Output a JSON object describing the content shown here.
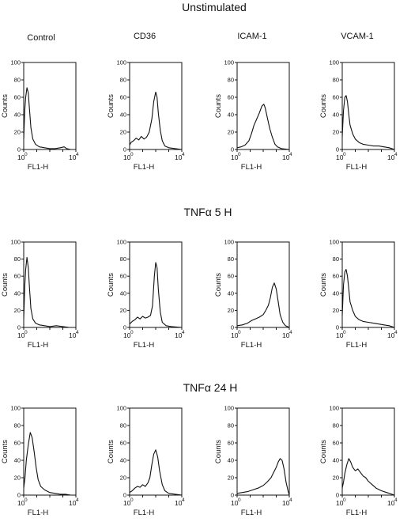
{
  "columns": [
    "Control",
    "CD36",
    "ICAM-1",
    "VCAM-1"
  ],
  "chart_data": [
    {
      "type": "line",
      "title": "Unstimulated",
      "ylabel": "Counts",
      "xlabel": "FL1-H",
      "x_scale": "log",
      "x_ticks": [
        "10",
        "0",
        "10",
        "4"
      ],
      "y_ticks": [
        "0",
        "20",
        "40",
        "60",
        "80",
        "100"
      ],
      "ylim": [
        0,
        100
      ],
      "xlim_log10": [
        0,
        4
      ],
      "panels": [
        {
          "name": "Control",
          "x_log10": [
            0.0,
            0.08,
            0.15,
            0.25,
            0.35,
            0.45,
            0.55,
            0.7,
            0.9,
            1.2,
            1.6,
            2.0,
            2.4,
            2.8,
            3.1,
            3.3,
            3.6,
            4.0
          ],
          "y": [
            12,
            45,
            60,
            71,
            65,
            45,
            25,
            12,
            6,
            3,
            2,
            1,
            1,
            2,
            3,
            1,
            0,
            0
          ]
        },
        {
          "name": "CD36",
          "x_log10": [
            0.0,
            0.1,
            0.3,
            0.5,
            0.7,
            0.9,
            1.1,
            1.3,
            1.5,
            1.7,
            1.85,
            2.0,
            2.1,
            2.2,
            2.35,
            2.5,
            2.7,
            3.0,
            3.5,
            4.0
          ],
          "y": [
            5,
            8,
            10,
            13,
            11,
            15,
            12,
            14,
            20,
            35,
            55,
            66,
            60,
            42,
            22,
            10,
            4,
            2,
            1,
            0
          ]
        },
        {
          "name": "ICAM-1",
          "x_log10": [
            0.0,
            0.3,
            0.6,
            0.9,
            1.1,
            1.3,
            1.5,
            1.7,
            1.9,
            2.05,
            2.15,
            2.3,
            2.5,
            2.7,
            2.9,
            3.1,
            3.4,
            4.0
          ],
          "y": [
            2,
            3,
            5,
            10,
            18,
            28,
            35,
            42,
            50,
            52,
            48,
            38,
            24,
            14,
            6,
            3,
            1,
            0
          ]
        },
        {
          "name": "VCAM-1",
          "x_log10": [
            0.0,
            0.1,
            0.2,
            0.3,
            0.4,
            0.5,
            0.6,
            0.8,
            1.0,
            1.3,
            1.6,
            2.0,
            2.4,
            2.8,
            3.2,
            3.6,
            4.0
          ],
          "y": [
            15,
            45,
            60,
            62,
            55,
            40,
            28,
            18,
            12,
            8,
            6,
            5,
            4,
            4,
            3,
            2,
            0
          ]
        }
      ]
    },
    {
      "type": "line",
      "title": "TNFα 5 H",
      "ylabel": "Counts",
      "xlabel": "FL1-H",
      "x_scale": "log",
      "x_ticks": [
        "10",
        "0",
        "10",
        "4"
      ],
      "y_ticks": [
        "0",
        "20",
        "40",
        "60",
        "80",
        "100"
      ],
      "ylim": [
        0,
        100
      ],
      "xlim_log10": [
        0,
        4
      ],
      "panels": [
        {
          "name": "Control",
          "x_log10": [
            0.0,
            0.08,
            0.15,
            0.25,
            0.35,
            0.45,
            0.55,
            0.7,
            0.9,
            1.2,
            1.6,
            2.0,
            2.5,
            3.0,
            3.5,
            4.0
          ],
          "y": [
            10,
            48,
            68,
            82,
            70,
            45,
            22,
            10,
            5,
            3,
            2,
            1,
            2,
            1,
            0,
            0
          ]
        },
        {
          "name": "CD36",
          "x_log10": [
            0.0,
            0.2,
            0.4,
            0.6,
            0.8,
            1.0,
            1.2,
            1.4,
            1.6,
            1.75,
            1.9,
            2.0,
            2.1,
            2.2,
            2.35,
            2.5,
            2.8,
            3.2,
            4.0
          ],
          "y": [
            4,
            7,
            9,
            12,
            10,
            13,
            11,
            12,
            14,
            25,
            60,
            76,
            70,
            45,
            18,
            6,
            2,
            1,
            0
          ]
        },
        {
          "name": "ICAM-1",
          "x_log10": [
            0.0,
            0.4,
            0.8,
            1.1,
            1.4,
            1.7,
            2.0,
            2.2,
            2.4,
            2.55,
            2.7,
            2.85,
            3.0,
            3.15,
            3.3,
            3.5,
            3.7,
            4.0
          ],
          "y": [
            2,
            3,
            5,
            8,
            10,
            12,
            15,
            20,
            26,
            35,
            47,
            52,
            45,
            30,
            15,
            6,
            2,
            0
          ]
        },
        {
          "name": "VCAM-1",
          "x_log10": [
            0.0,
            0.1,
            0.2,
            0.3,
            0.4,
            0.5,
            0.6,
            0.8,
            1.0,
            1.3,
            1.6,
            2.0,
            2.4,
            2.8,
            3.2,
            3.6,
            4.0
          ],
          "y": [
            14,
            50,
            65,
            68,
            60,
            45,
            30,
            20,
            13,
            9,
            7,
            6,
            5,
            4,
            3,
            2,
            0
          ]
        }
      ]
    },
    {
      "type": "line",
      "title": "TNFα 24 H",
      "ylabel": "Counts",
      "xlabel": "FL1-H",
      "x_scale": "log",
      "x_ticks": [
        "10",
        "0",
        "10",
        "4"
      ],
      "y_ticks": [
        "0",
        "20",
        "40",
        "60",
        "80",
        "100"
      ],
      "ylim": [
        0,
        100
      ],
      "xlim_log10": [
        0,
        4
      ],
      "panels": [
        {
          "name": "Control",
          "x_log10": [
            0.0,
            0.1,
            0.2,
            0.35,
            0.5,
            0.65,
            0.8,
            0.95,
            1.1,
            1.3,
            1.6,
            2.0,
            2.4,
            2.8,
            3.2,
            3.6,
            4.0
          ],
          "y": [
            8,
            20,
            40,
            58,
            72,
            66,
            50,
            32,
            18,
            10,
            6,
            3,
            2,
            1,
            1,
            0,
            0
          ]
        },
        {
          "name": "CD36",
          "x_log10": [
            0.0,
            0.2,
            0.4,
            0.6,
            0.8,
            1.0,
            1.2,
            1.4,
            1.55,
            1.7,
            1.85,
            2.0,
            2.15,
            2.3,
            2.5,
            2.7,
            3.0,
            3.5,
            4.0
          ],
          "y": [
            3,
            5,
            8,
            10,
            9,
            12,
            10,
            14,
            20,
            35,
            47,
            52,
            44,
            28,
            12,
            5,
            2,
            1,
            0
          ]
        },
        {
          "name": "ICAM-1",
          "x_log10": [
            0.0,
            0.4,
            0.8,
            1.2,
            1.6,
            2.0,
            2.3,
            2.6,
            2.8,
            3.0,
            3.15,
            3.3,
            3.45,
            3.6,
            3.75,
            3.9,
            4.0
          ],
          "y": [
            2,
            3,
            4,
            6,
            8,
            11,
            15,
            20,
            26,
            32,
            38,
            42,
            40,
            30,
            15,
            5,
            0
          ]
        },
        {
          "name": "VCAM-1",
          "x_log10": [
            0.0,
            0.1,
            0.2,
            0.35,
            0.5,
            0.65,
            0.8,
            1.0,
            1.2,
            1.4,
            1.6,
            1.8,
            2.0,
            2.3,
            2.6,
            3.0,
            3.4,
            3.8,
            4.0
          ],
          "y": [
            8,
            15,
            25,
            35,
            42,
            38,
            32,
            28,
            30,
            26,
            22,
            20,
            16,
            12,
            8,
            5,
            3,
            1,
            0
          ]
        }
      ]
    }
  ]
}
